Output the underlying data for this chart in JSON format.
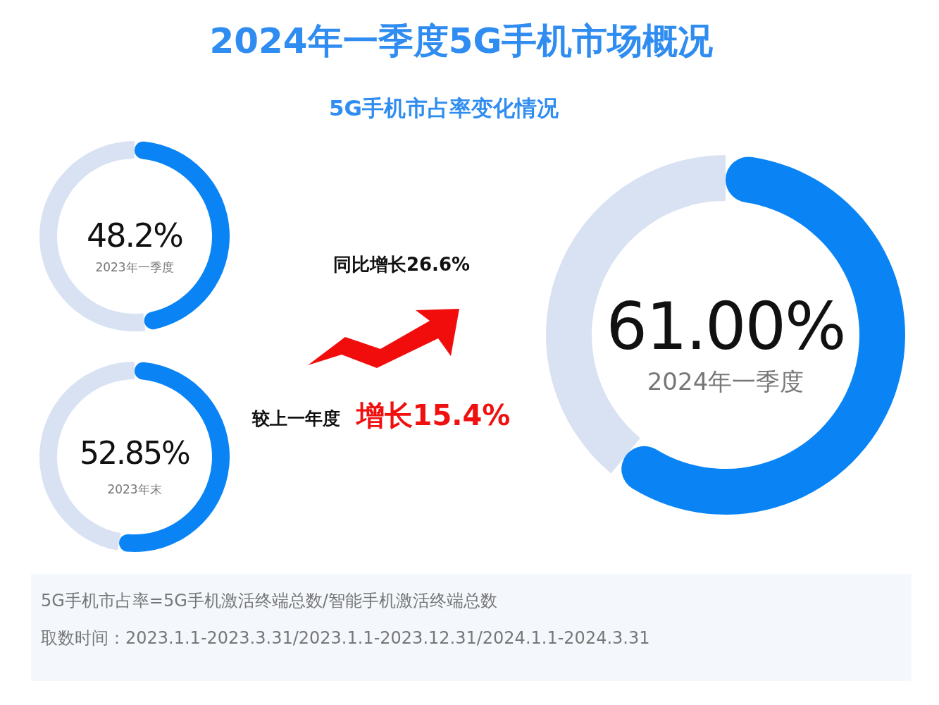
{
  "chart_data": [
    {
      "type": "other",
      "title": "2024年一季度5G手机市场概况",
      "subtitle": "5G手机市占率变化情况",
      "annotations": [
        "同比增长26.6%",
        "较上一年度",
        "增长15.4%",
        "5G手机市占率=5G手机激活终端总数/智能手机激活终端总数",
        "取数时间：2023.1.1-2023.3.31/2023.1.1-2023.12.31/2024.1.1-2024.3.31"
      ]
    },
    {
      "type": "donut",
      "categories": [
        "2023年一季度",
        null
      ],
      "values": [
        48.2,
        51.8
      ],
      "colors": [
        "#0a84f5",
        "#d9e2f3"
      ],
      "value_labels": [
        "48.2%",
        null
      ]
    },
    {
      "type": "donut",
      "categories": [
        "2023年末",
        null
      ],
      "values": [
        52.85,
        47.15
      ],
      "colors": [
        "#0a84f5",
        "#d9e2f3"
      ],
      "value_labels": [
        "52.85%",
        null
      ]
    },
    {
      "type": "donut",
      "categories": [
        "2024年一季度",
        null
      ],
      "values": [
        61.0,
        39.0
      ],
      "colors": [
        "#0a84f5",
        "#d9e2f3"
      ],
      "value_labels": [
        "61.00%",
        null
      ]
    }
  ]
}
